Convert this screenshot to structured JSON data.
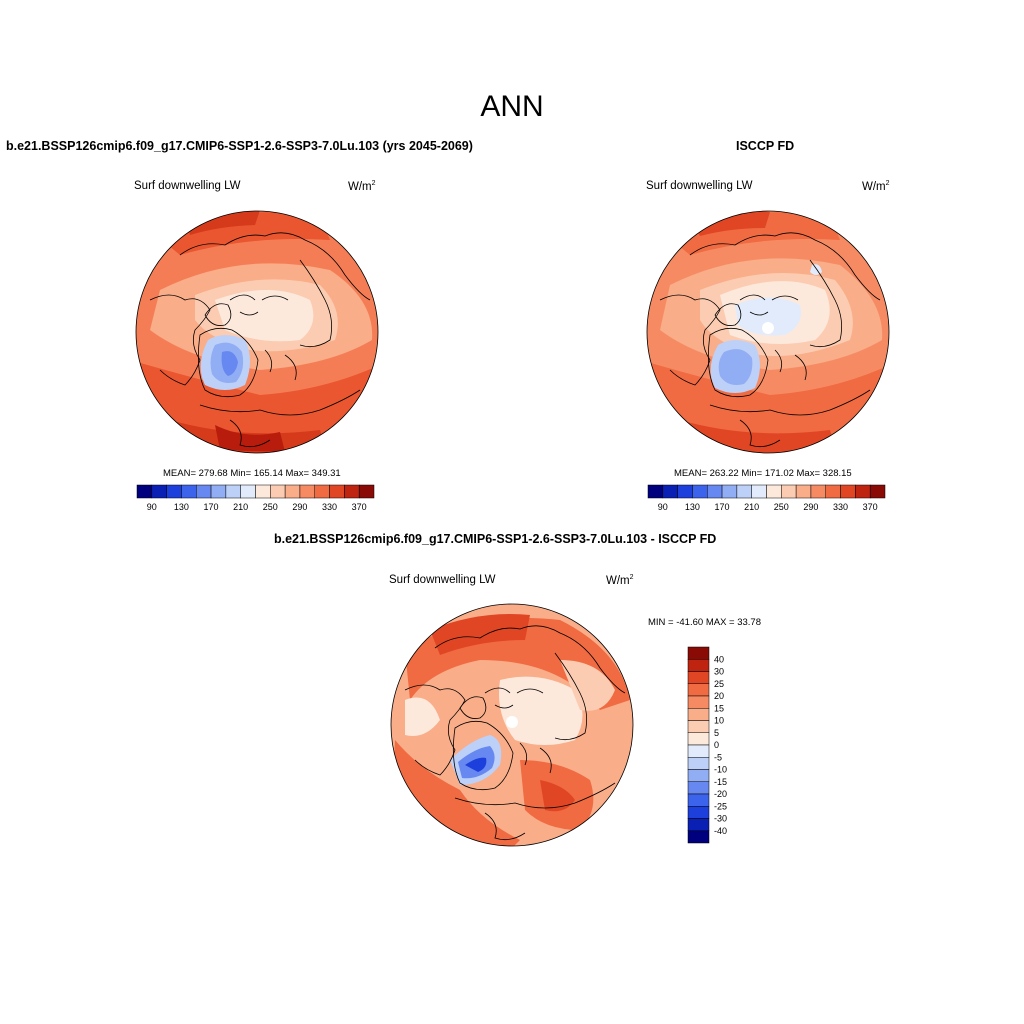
{
  "title": "ANN",
  "panels": [
    {
      "title": "b.e21.BSSP126cmip6.f09_g17.CMIP6-SSP1-2.6-SSP3-7.0Lu.103 (yrs 2045-2069)",
      "variable": "Surf downwelling LW",
      "units_base": "W/m",
      "units_exp": "2",
      "stats": "MEAN= 279.68  Min= 165.14  Max= 349.31"
    },
    {
      "title": "ISCCP FD",
      "variable": "Surf downwelling LW",
      "units_base": "W/m",
      "units_exp": "2",
      "stats": "MEAN= 263.22  Min= 171.02  Max= 328.15"
    },
    {
      "title": "b.e21.BSSP126cmip6.f09_g17.CMIP6-SSP1-2.6-SSP3-7.0Lu.103 - ISCCP FD",
      "variable": "Surf downwelling LW",
      "units_base": "W/m",
      "units_exp": "2",
      "stats": "MIN = -41.60 MAX =  33.78"
    }
  ],
  "abs_colorbar": {
    "labels": [
      "90",
      "130",
      "170",
      "210",
      "250",
      "290",
      "330",
      "370"
    ],
    "colors": [
      "#00007f",
      "#0a1fb4",
      "#1d3fdc",
      "#3c63ec",
      "#6688f0",
      "#91adf4",
      "#bdd0f8",
      "#e1ebfb",
      "#fde9dc",
      "#fcccb2",
      "#f9ad89",
      "#f68b63",
      "#f06a42",
      "#e04624",
      "#bf2411",
      "#8a0a05"
    ]
  },
  "diff_colorbar": {
    "labels": [
      "40",
      "30",
      "25",
      "20",
      "15",
      "10",
      "5",
      "0",
      "-5",
      "-10",
      "-15",
      "-20",
      "-25",
      "-30",
      "-40"
    ],
    "colors": [
      "#8a0a05",
      "#bf2411",
      "#e04624",
      "#f06a42",
      "#f68b63",
      "#f9ad89",
      "#fcccb2",
      "#fde9dc",
      "#e1ebfb",
      "#bdd0f8",
      "#91adf4",
      "#6688f0",
      "#3c63ec",
      "#1d3fdc",
      "#0a1fb4",
      "#00007f"
    ]
  }
}
